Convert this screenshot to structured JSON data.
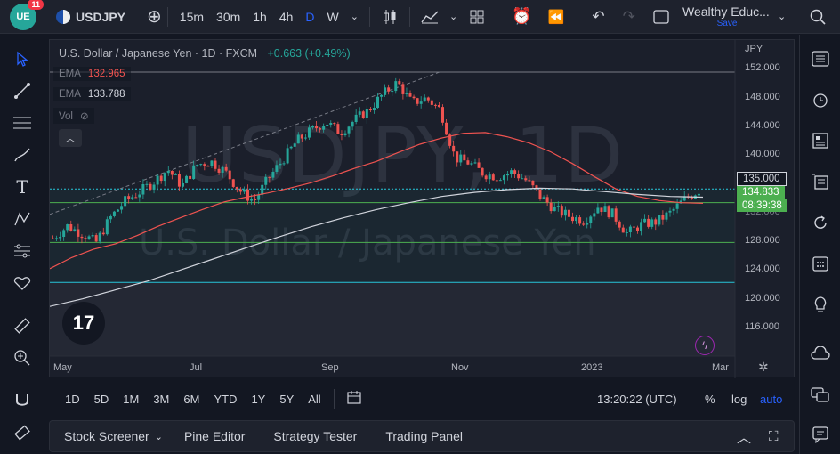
{
  "header": {
    "logo_text": "UE",
    "notifications": "11",
    "symbol": "USDJPY",
    "timeframes": [
      "15m",
      "30m",
      "1h",
      "4h",
      "D",
      "W"
    ],
    "active_timeframe": "D",
    "account_name": "Wealthy Educ...",
    "save_label": "Save"
  },
  "chart": {
    "title": "U.S. Dollar / Japanese Yen · 1D · FXCM",
    "change": "+0.663 (+0.49%)",
    "ema1_label": "EMA",
    "ema1_value": "132.965",
    "ema2_label": "EMA",
    "ema2_value": "133.788",
    "vol_label": "Vol",
    "watermark_symbol": "USDJPY, 1D",
    "watermark_name": "U.S. Dollar / Japanese Yen",
    "currency": "JPY",
    "price_tag_level": "135.000",
    "last_price": "134.833",
    "countdown": "08:39:38",
    "tv_logo": "17",
    "colors": {
      "up": "#26a69a",
      "down": "#ef5350",
      "ema_fast": "#ef5350",
      "ema_slow": "#d1d4dc",
      "bg": "#1b1f2b",
      "support": "#4caf50",
      "cyan": "#26c6da"
    }
  },
  "chart_data": {
    "type": "candlestick",
    "y_ticks": [
      "152.000",
      "148.000",
      "144.000",
      "140.000",
      "135.000",
      "132.000",
      "128.000",
      "124.000",
      "120.000",
      "116.000"
    ],
    "x_ticks": [
      "May",
      "Jul",
      "Sep",
      "Nov",
      "2023",
      "Mar"
    ],
    "ylim": [
      113,
      153
    ],
    "horizontal_lines": [
      152.0,
      135.0,
      133.0,
      127.2,
      121.4
    ],
    "close_path": [
      127.8,
      129.6,
      128.5,
      127.2,
      130.8,
      133.2,
      134.5,
      136.0,
      137.8,
      135.4,
      138.5,
      139.0,
      137.5,
      134.8,
      133.2,
      136.5,
      139.2,
      142.0,
      143.5,
      144.8,
      143.2,
      145.0,
      146.5,
      148.8,
      150.5,
      147.5,
      148.2,
      146.5,
      139.5,
      138.8,
      137.2,
      136.8,
      137.5,
      136.2,
      133.8,
      132.0,
      131.0,
      130.4,
      132.5,
      131.3,
      128.5,
      129.8,
      130.2,
      131.5,
      133.5,
      134.8
    ],
    "ema_fast": [
      123.4,
      125.0,
      126.2,
      127.0,
      128.2,
      129.6,
      130.8,
      132.0,
      133.1,
      133.8,
      134.4,
      135.1,
      135.9,
      136.9,
      138.0,
      139.0,
      140.3,
      141.5,
      142.4,
      143.1,
      143.2,
      142.6,
      141.7,
      140.4,
      138.7,
      136.8,
      135.0,
      133.9,
      133.3,
      133.0,
      132.9
    ],
    "ema_slow": [
      117.9,
      119.0,
      120.3,
      121.6,
      123.2,
      124.8,
      126.4,
      128.0,
      129.5,
      130.8,
      132.0,
      133.0,
      133.9,
      134.5,
      134.9,
      135.1,
      135.0,
      134.6,
      134.2,
      133.9,
      133.8
    ]
  },
  "left_tools": [
    "cursor-icon",
    "trend-line-icon",
    "fib-icon",
    "brush-icon",
    "text-icon",
    "pattern-icon",
    "forecast-icon",
    "favorites-icon",
    "ruler-icon",
    "zoom-in-icon",
    "magnet-icon",
    "eraser-icon"
  ],
  "right_tools": [
    "watchlist-icon",
    "alerts-icon",
    "data-window-icon",
    "hotlist-icon",
    "calendar-icon",
    "ideas-icon",
    "streams-icon",
    "chats-icon",
    "notifications-icon"
  ],
  "bottom": {
    "ranges": [
      "1D",
      "5D",
      "1M",
      "3M",
      "6M",
      "YTD",
      "1Y",
      "5Y",
      "All"
    ],
    "time": "13:20:22 (UTC)",
    "percent": "%",
    "log": "log",
    "auto": "auto"
  },
  "panels": [
    "Stock Screener",
    "Pine Editor",
    "Strategy Tester",
    "Trading Panel"
  ]
}
